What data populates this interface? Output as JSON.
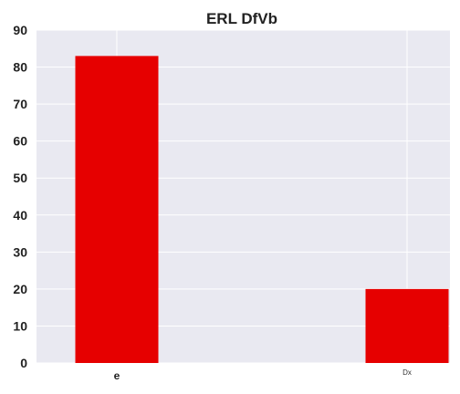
{
  "chart_data": {
    "type": "bar",
    "title": "ERL DfVb",
    "categories": [
      "e",
      "Dx"
    ],
    "values": [
      83,
      20
    ],
    "xlabel": "",
    "ylabel": "",
    "ylim": [
      0,
      90
    ],
    "yticks": [
      0,
      10,
      20,
      30,
      40,
      50,
      60,
      70,
      80,
      90
    ],
    "grid": true,
    "colors": {
      "bar": "#e60000",
      "plot_bg": "#e9e9f1",
      "grid": "#ffffff"
    }
  }
}
